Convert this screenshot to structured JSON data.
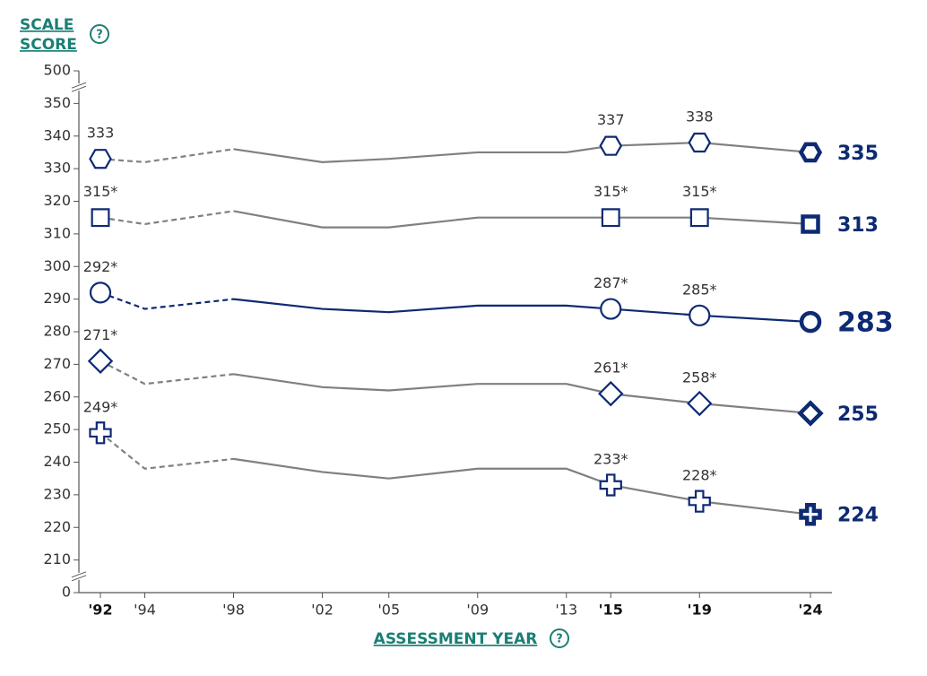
{
  "chart_data": {
    "type": "line",
    "y_label": [
      "SCALE",
      "SCORE"
    ],
    "x_label": "ASSESSMENT YEAR",
    "x": [
      1992,
      1994,
      1998,
      2002,
      2005,
      2009,
      2013,
      2015,
      2019,
      2024
    ],
    "xlim": [
      1992,
      2024
    ],
    "xticks": [
      {
        "value": 1992,
        "label": "'92"
      },
      {
        "value": 1994,
        "label": "'94"
      },
      {
        "value": 1998,
        "label": "'98"
      },
      {
        "value": 2002,
        "label": "'02"
      },
      {
        "value": 2005,
        "label": "'05"
      },
      {
        "value": 2009,
        "label": "'09"
      },
      {
        "value": 2013,
        "label": "'13"
      },
      {
        "value": 2015,
        "label": "'15"
      },
      {
        "value": 2019,
        "label": "'19"
      },
      {
        "value": 2024,
        "label": "'24"
      }
    ],
    "bold_xticks": [
      1992,
      2015,
      2019,
      2024
    ],
    "ylim": [
      0,
      500
    ],
    "yticks": [
      0,
      210,
      220,
      230,
      240,
      250,
      260,
      270,
      280,
      290,
      300,
      310,
      320,
      330,
      340,
      350,
      500
    ],
    "axis_breaks": true,
    "dashed_until": 1998,
    "marker_color": "#0d2a73",
    "series": [
      {
        "color": "#808080",
        "marker": "hexagon",
        "values": [
          333,
          332,
          336,
          332,
          333,
          335,
          335,
          337,
          338,
          335
        ],
        "value_labels": [
          "333",
          null,
          null,
          null,
          null,
          null,
          null,
          "337",
          "338",
          "335"
        ]
      },
      {
        "color": "#808080",
        "marker": "square",
        "values": [
          315,
          313,
          317,
          312,
          312,
          315,
          315,
          315,
          315,
          313
        ],
        "value_labels": [
          "315*",
          null,
          null,
          null,
          null,
          null,
          null,
          "315*",
          "315*",
          "313"
        ]
      },
      {
        "color": "#0d2a73",
        "marker": "circle",
        "emphasis": true,
        "values": [
          292,
          287,
          290,
          287,
          286,
          288,
          288,
          287,
          285,
          283
        ],
        "value_labels": [
          "292*",
          null,
          null,
          null,
          null,
          null,
          null,
          "287*",
          "285*",
          "283"
        ]
      },
      {
        "color": "#808080",
        "marker": "diamond",
        "values": [
          271,
          264,
          267,
          263,
          262,
          264,
          264,
          261,
          258,
          255
        ],
        "value_labels": [
          "271*",
          null,
          null,
          null,
          null,
          null,
          null,
          "261*",
          "258*",
          "255"
        ]
      },
      {
        "color": "#808080",
        "marker": "cross",
        "values": [
          249,
          238,
          241,
          237,
          235,
          238,
          238,
          233,
          228,
          224
        ],
        "value_labels": [
          "249*",
          null,
          null,
          null,
          null,
          null,
          null,
          "233*",
          "228*",
          "224"
        ]
      }
    ]
  }
}
